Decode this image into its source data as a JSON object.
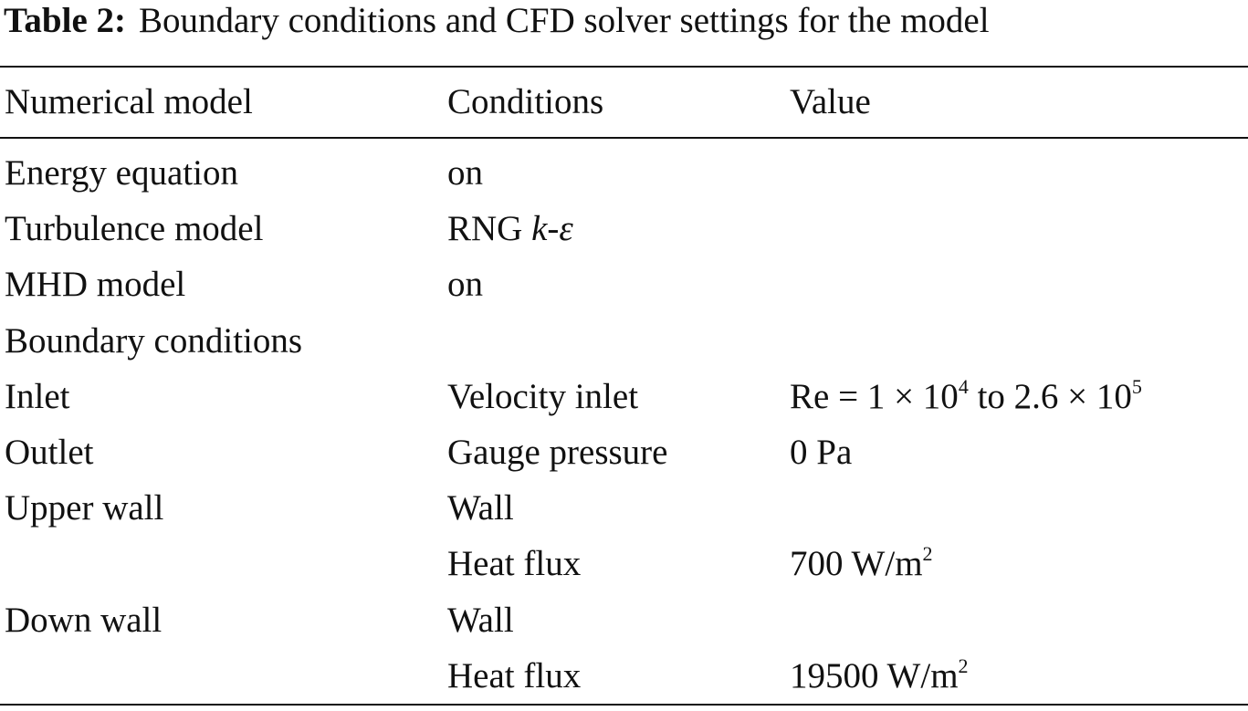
{
  "table": {
    "label": "Table 2:",
    "title": "Boundary conditions and CFD solver settings for the model",
    "header": [
      "Numerical model",
      "Conditions",
      "Value"
    ],
    "rows": [
      [
        "Energy equation",
        "on",
        null
      ],
      [
        "Turbulence model",
        [
          {
            "text": "RNG "
          },
          {
            "text": "k",
            "italic": true
          },
          {
            "text": "-"
          },
          {
            "text": "ε",
            "italic": true
          }
        ],
        null
      ],
      [
        "MHD model",
        "on",
        null
      ],
      [
        "Boundary conditions",
        null,
        null
      ],
      [
        "Inlet",
        "Velocity inlet",
        [
          {
            "text": "Re = 1 × 10"
          },
          {
            "text": "4",
            "sup": true
          },
          {
            "text": " to 2.6 × 10"
          },
          {
            "text": "5",
            "sup": true
          }
        ]
      ],
      [
        "Outlet",
        "Gauge pressure",
        "0 Pa"
      ],
      [
        "Upper wall",
        "Wall",
        null
      ],
      [
        null,
        "Heat flux",
        [
          {
            "text": "700 W/m"
          },
          {
            "text": "2",
            "sup": true
          }
        ]
      ],
      [
        "Down wall",
        "Wall",
        null
      ],
      [
        null,
        "Heat flux",
        [
          {
            "text": "19500 W/m"
          },
          {
            "text": "2",
            "sup": true
          }
        ]
      ]
    ]
  }
}
